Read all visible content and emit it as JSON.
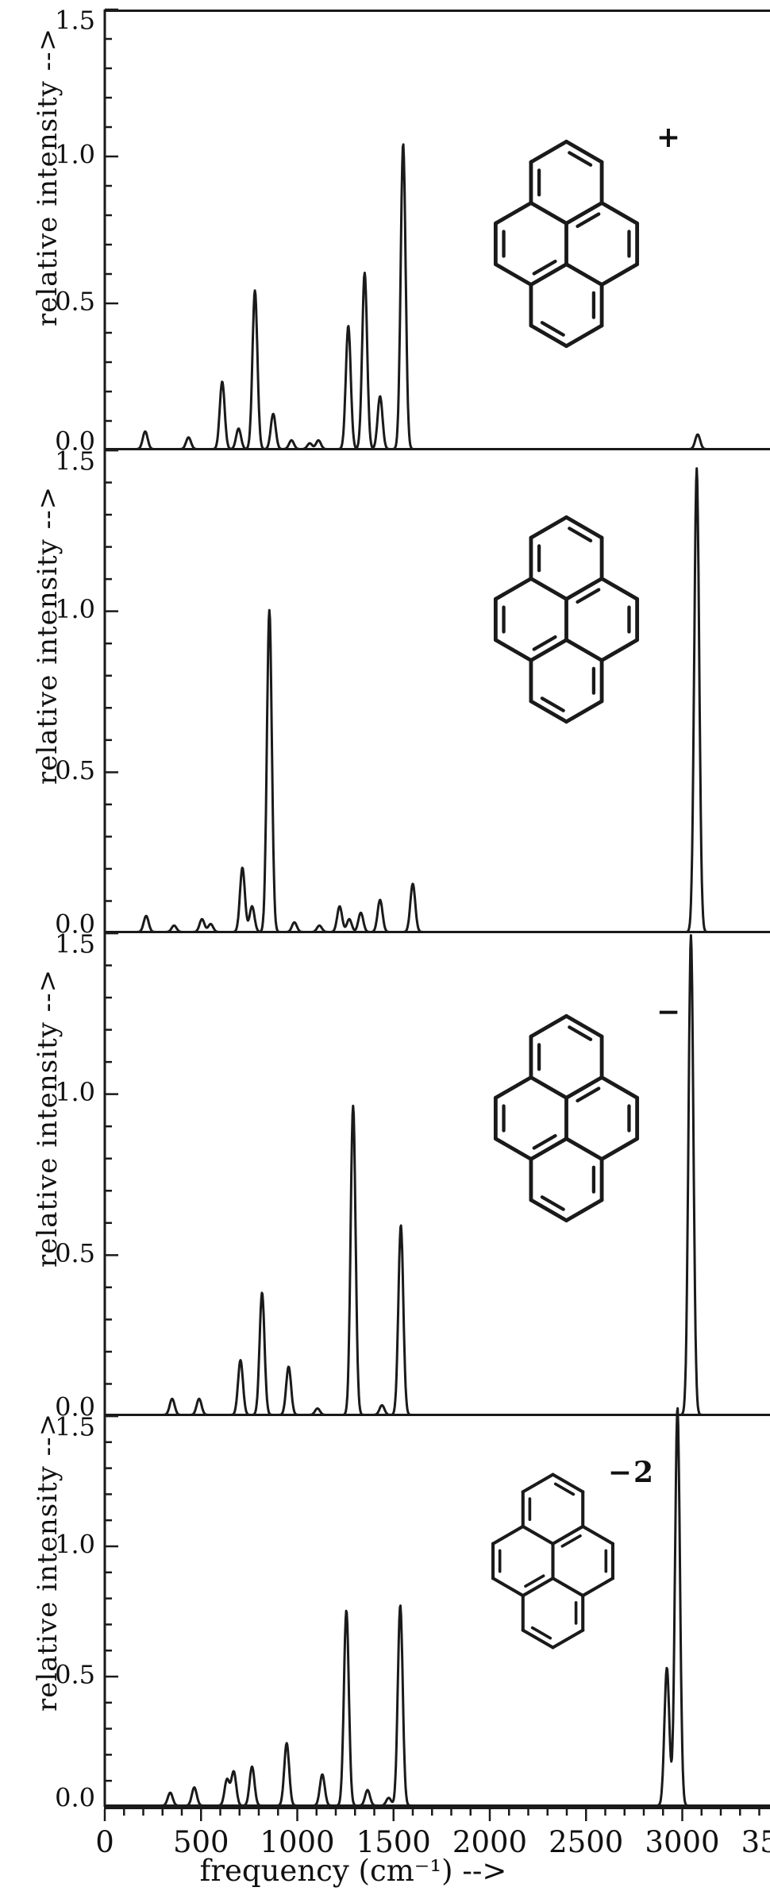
{
  "figure": {
    "background": "#ffffff",
    "line_color": "#1a1a1a",
    "description": "Four stacked theoretical infrared spectra of pyrene in different charge states"
  },
  "y_axis": {
    "title": "relative intensity  -->",
    "range": [
      0,
      1.5
    ],
    "major_ticks": [
      0,
      0.5,
      1.0,
      1.5
    ],
    "tick_labels": [
      "0.0",
      "0.5",
      "1.0",
      "1.5"
    ],
    "minor_step": 0.1
  },
  "x_axis": {
    "title": "frequency (cm⁻¹)  -->",
    "range": [
      0,
      3500
    ],
    "major_step": 500,
    "minor_step": 100,
    "tick_labels": [
      "0",
      "500",
      "1000",
      "1500",
      "2000",
      "2500",
      "3000",
      "3500"
    ]
  },
  "chart_data": [
    {
      "type": "line",
      "name": "pyrene cation spectrum",
      "molecule": "pyrene",
      "charge_label": "+",
      "xlim": [
        0,
        3500
      ],
      "ylim": [
        0,
        1.5
      ],
      "peak_fwhm_cm1": 30,
      "peaks": [
        [
          210,
          0.06
        ],
        [
          435,
          0.04
        ],
        [
          610,
          0.23
        ],
        [
          695,
          0.07
        ],
        [
          780,
          0.54
        ],
        [
          875,
          0.12
        ],
        [
          970,
          0.03
        ],
        [
          1065,
          0.02
        ],
        [
          1110,
          0.03
        ],
        [
          1265,
          0.42
        ],
        [
          1350,
          0.6
        ],
        [
          1430,
          0.18
        ],
        [
          1550,
          1.04
        ],
        [
          3080,
          0.05
        ]
      ]
    },
    {
      "type": "line",
      "name": "pyrene neutral spectrum",
      "molecule": "pyrene",
      "charge_label": "",
      "xlim": [
        0,
        3500
      ],
      "ylim": [
        0,
        1.5
      ],
      "peak_fwhm_cm1": 30,
      "peaks": [
        [
          215,
          0.05
        ],
        [
          360,
          0.02
        ],
        [
          505,
          0.04
        ],
        [
          550,
          0.025
        ],
        [
          715,
          0.2
        ],
        [
          765,
          0.08
        ],
        [
          855,
          1.0
        ],
        [
          985,
          0.03
        ],
        [
          1115,
          0.02
        ],
        [
          1220,
          0.08
        ],
        [
          1270,
          0.04
        ],
        [
          1330,
          0.06
        ],
        [
          1430,
          0.1
        ],
        [
          1600,
          0.15
        ],
        [
          3075,
          1.44
        ]
      ]
    },
    {
      "type": "line",
      "name": "pyrene anion spectrum",
      "molecule": "pyrene",
      "charge_label": "−",
      "xlim": [
        0,
        3500
      ],
      "ylim": [
        0,
        1.5
      ],
      "peak_fwhm_cm1": 30,
      "peaks": [
        [
          350,
          0.05
        ],
        [
          490,
          0.05
        ],
        [
          705,
          0.17
        ],
        [
          817,
          0.38
        ],
        [
          955,
          0.15
        ],
        [
          1105,
          0.02
        ],
        [
          1290,
          0.96
        ],
        [
          1440,
          0.03
        ],
        [
          1538,
          0.59
        ],
        [
          3045,
          1.49
        ]
      ]
    },
    {
      "type": "line",
      "name": "pyrene dianion spectrum",
      "molecule": "pyrene",
      "charge_label": "−2",
      "xlim": [
        0,
        3500
      ],
      "ylim": [
        0,
        1.5
      ],
      "peak_fwhm_cm1": 30,
      "peaks": [
        [
          340,
          0.05
        ],
        [
          465,
          0.07
        ],
        [
          635,
          0.1
        ],
        [
          670,
          0.13
        ],
        [
          765,
          0.15
        ],
        [
          945,
          0.24
        ],
        [
          1130,
          0.12
        ],
        [
          1255,
          0.75
        ],
        [
          1365,
          0.06
        ],
        [
          1475,
          0.03
        ],
        [
          1535,
          0.77
        ],
        [
          2920,
          0.53
        ],
        [
          2975,
          1.53
        ]
      ]
    }
  ]
}
